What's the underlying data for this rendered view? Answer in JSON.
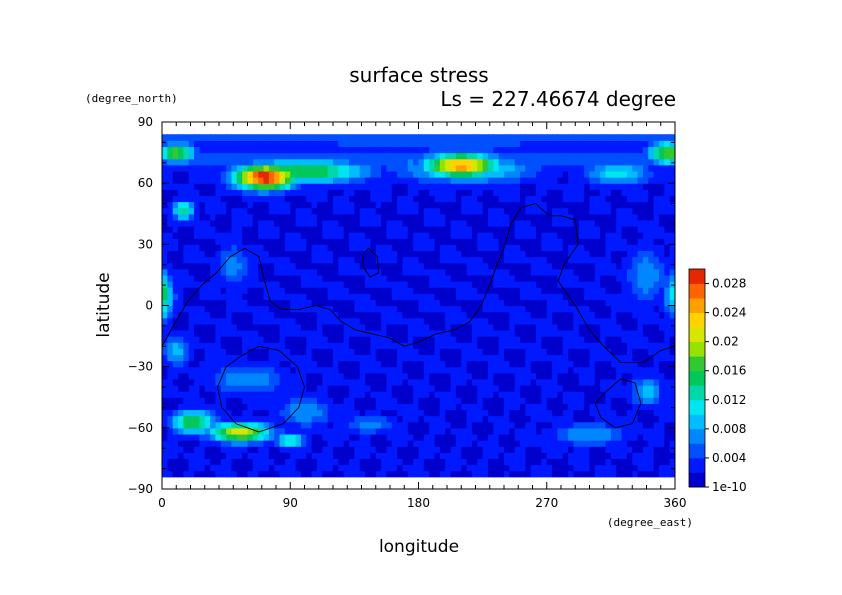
{
  "chart_data": {
    "type": "heatmap",
    "title": "surface stress",
    "subtitle": "Ls = 227.46674 degree",
    "xlabel": "longitude",
    "ylabel": "latitude",
    "x_unit": "(degree_east)",
    "y_unit": "(degree_north)",
    "xlim": [
      0,
      360
    ],
    "ylim": [
      -90,
      90
    ],
    "x_ticks": [
      "0",
      "90",
      "180",
      "270",
      "360"
    ],
    "y_ticks": [
      "90",
      "60",
      "30",
      "0",
      "−30",
      "−60",
      "−90"
    ],
    "x_tick_values": [
      0,
      90,
      180,
      270,
      360
    ],
    "y_tick_values": [
      90,
      60,
      30,
      0,
      -30,
      -60,
      -90
    ],
    "data_lat_range": [
      -84,
      84
    ],
    "colorbar": {
      "ticks": [
        "1e-10",
        "0.004",
        "0.008",
        "0.012",
        "0.016",
        "0.02",
        "0.024",
        "0.028"
      ],
      "tick_values": [
        0,
        0.004,
        0.008,
        0.012,
        0.016,
        0.02,
        0.024,
        0.028
      ],
      "max": 0.03,
      "levels": 15,
      "colors": [
        "#0000cd",
        "#0019ff",
        "#0050ff",
        "#0087ff",
        "#00bdff",
        "#00e6f0",
        "#00d7aa",
        "#00c85a",
        "#32c832",
        "#96e100",
        "#d7e600",
        "#ffd200",
        "#ffa000",
        "#ff6400",
        "#e62800"
      ]
    },
    "background_level": 0.002,
    "features": [
      {
        "name": "north band",
        "lon": 180,
        "lat": 72,
        "lon_width": 400,
        "lat_width": 7,
        "value": 0.005
      },
      {
        "name": "polar cap",
        "lon": 180,
        "lat": 82,
        "lon_width": 400,
        "lat_width": 4,
        "value": 0.006
      },
      {
        "name": "peak 70E 63N",
        "lon": 72,
        "lat": 63,
        "lon_width": 22,
        "lat_width": 6,
        "value": 0.029
      },
      {
        "name": "ridge 60-130E",
        "lon": 100,
        "lat": 66,
        "lon_width": 45,
        "lat_width": 6,
        "value": 0.017
      },
      {
        "name": "peak 210E 69N",
        "lon": 210,
        "lat": 69,
        "lon_width": 26,
        "lat_width": 6,
        "value": 0.024
      },
      {
        "name": "ridge 180-250E",
        "lon": 215,
        "lat": 67,
        "lon_width": 50,
        "lat_width": 7,
        "value": 0.012
      },
      {
        "name": "10E 75N",
        "lon": 10,
        "lat": 75,
        "lon_width": 14,
        "lat_width": 5,
        "value": 0.018
      },
      {
        "name": "355E 75N",
        "lon": 355,
        "lat": 75,
        "lon_width": 14,
        "lat_width": 6,
        "value": 0.018
      },
      {
        "name": "320E 65N",
        "lon": 320,
        "lat": 65,
        "lon_width": 25,
        "lat_width": 6,
        "value": 0.011
      },
      {
        "name": "15E 47N",
        "lon": 15,
        "lat": 47,
        "lon_width": 8,
        "lat_width": 5,
        "value": 0.014
      },
      {
        "name": "west rim",
        "lon": 0,
        "lat": 5,
        "lon_width": 8,
        "lat_width": 12,
        "value": 0.016
      },
      {
        "name": "east rim",
        "lon": 360,
        "lat": 5,
        "lon_width": 8,
        "lat_width": 12,
        "value": 0.011
      },
      {
        "name": "50E 20N",
        "lon": 50,
        "lat": 20,
        "lon_width": 12,
        "lat_width": 12,
        "value": 0.007
      },
      {
        "name": "340E 15N",
        "lon": 340,
        "lat": 15,
        "lon_width": 15,
        "lat_width": 15,
        "value": 0.008
      },
      {
        "name": "50E 62S",
        "lon": 55,
        "lat": -62,
        "lon_width": 22,
        "lat_width": 5,
        "value": 0.021
      },
      {
        "name": "25E 57S",
        "lon": 22,
        "lat": -57,
        "lon_width": 16,
        "lat_width": 6,
        "value": 0.017
      },
      {
        "name": "90E 65S",
        "lon": 90,
        "lat": -66,
        "lon_width": 10,
        "lat_width": 4,
        "value": 0.013
      },
      {
        "name": "100E 52S",
        "lon": 100,
        "lat": -52,
        "lon_width": 20,
        "lat_width": 8,
        "value": 0.008
      },
      {
        "name": "60E 35S",
        "lon": 60,
        "lat": -36,
        "lon_width": 30,
        "lat_width": 8,
        "value": 0.008
      },
      {
        "name": "140E 58S",
        "lon": 145,
        "lat": -58,
        "lon_width": 20,
        "lat_width": 5,
        "value": 0.007
      },
      {
        "name": "300E 62S",
        "lon": 300,
        "lat": -63,
        "lon_width": 28,
        "lat_width": 6,
        "value": 0.008
      },
      {
        "name": "340E 45S",
        "lon": 340,
        "lat": -42,
        "lon_width": 12,
        "lat_width": 8,
        "value": 0.009
      },
      {
        "name": "10E 20S",
        "lon": 10,
        "lat": -22,
        "lon_width": 10,
        "lat_width": 8,
        "value": 0.009
      }
    ],
    "contours": [
      {
        "name": "dichotomy boundary",
        "points": [
          [
            0,
            -20
          ],
          [
            8,
            -10
          ],
          [
            18,
            2
          ],
          [
            28,
            10
          ],
          [
            38,
            16
          ],
          [
            48,
            24
          ],
          [
            58,
            28
          ],
          [
            68,
            24
          ],
          [
            72,
            12
          ],
          [
            76,
            2
          ],
          [
            84,
            -2
          ],
          [
            96,
            -2
          ],
          [
            108,
            0
          ],
          [
            118,
            -2
          ],
          [
            126,
            -8
          ],
          [
            136,
            -12
          ],
          [
            148,
            -14
          ],
          [
            160,
            -16
          ],
          [
            170,
            -20
          ],
          [
            180,
            -18
          ],
          [
            192,
            -14
          ],
          [
            205,
            -12
          ],
          [
            216,
            -8
          ],
          [
            224,
            0
          ],
          [
            230,
            10
          ],
          [
            235,
            20
          ],
          [
            240,
            28
          ],
          [
            245,
            40
          ],
          [
            252,
            48
          ],
          [
            262,
            50
          ],
          [
            272,
            44
          ],
          [
            280,
            44
          ],
          [
            290,
            42
          ],
          [
            292,
            30
          ],
          [
            282,
            20
          ],
          [
            278,
            12
          ],
          [
            290,
            0
          ],
          [
            300,
            -12
          ],
          [
            310,
            -20
          ],
          [
            322,
            -28
          ],
          [
            338,
            -28
          ],
          [
            350,
            -22
          ],
          [
            360,
            -20
          ]
        ],
        "closed": false
      },
      {
        "name": "Hellas rim",
        "points": [
          [
            45,
            -30
          ],
          [
            55,
            -25
          ],
          [
            68,
            -20
          ],
          [
            82,
            -22
          ],
          [
            95,
            -30
          ],
          [
            100,
            -40
          ],
          [
            96,
            -50
          ],
          [
            85,
            -58
          ],
          [
            68,
            -62
          ],
          [
            52,
            -58
          ],
          [
            42,
            -50
          ],
          [
            39,
            -40
          ]
        ],
        "closed": true
      },
      {
        "name": "Argyre rim",
        "points": [
          [
            312,
            -42
          ],
          [
            322,
            -36
          ],
          [
            332,
            -38
          ],
          [
            336,
            -48
          ],
          [
            330,
            -58
          ],
          [
            318,
            -60
          ],
          [
            308,
            -55
          ],
          [
            304,
            -48
          ]
        ],
        "closed": true
      },
      {
        "name": "Elysium loop",
        "points": [
          [
            145,
            28
          ],
          [
            151,
            24
          ],
          [
            152,
            16
          ],
          [
            146,
            14
          ],
          [
            141,
            19
          ],
          [
            141,
            25
          ]
        ],
        "closed": true
      }
    ]
  }
}
